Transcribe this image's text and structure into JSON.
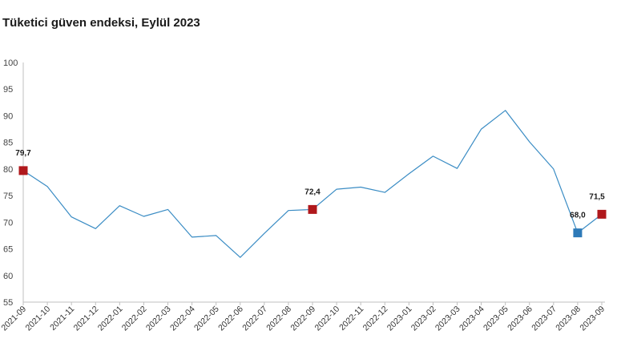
{
  "title": "Tüketici güven endeksi, Eylül 2023",
  "chart_data": {
    "type": "line",
    "title": "Tüketici güven endeksi, Eylül 2023",
    "xlabel": "",
    "ylabel": "",
    "ylim": [
      55,
      100
    ],
    "yticks": [
      "55",
      "60",
      "65",
      "70",
      "75",
      "80",
      "85",
      "90",
      "95",
      "100"
    ],
    "grid": false,
    "line_color": "#3a8cc4",
    "categories": [
      "2021-09",
      "2021-10",
      "2021-11",
      "2021-12",
      "2022-01",
      "2022-02",
      "2022-03",
      "2022-04",
      "2022-05",
      "2022-06",
      "2022-07",
      "2022-08",
      "2022-09",
      "2022-10",
      "2022-11",
      "2022-12",
      "2023-01",
      "2023-02",
      "2023-03",
      "2023-04",
      "2023-05",
      "2023-06",
      "2023-07",
      "2023-08",
      "2023-09"
    ],
    "series": [
      {
        "values": [
          79.7,
          76.7,
          71.0,
          68.8,
          73.1,
          71.1,
          72.4,
          67.2,
          67.5,
          63.4,
          67.9,
          72.2,
          72.4,
          76.2,
          76.6,
          75.6,
          79.1,
          82.4,
          80.1,
          87.5,
          91.0,
          85.1,
          80.0,
          68.0,
          71.5
        ]
      }
    ],
    "markers": [
      {
        "category": "2021-09",
        "value": 79.7,
        "label": "79,7",
        "color": "#b0181c"
      },
      {
        "category": "2022-09",
        "value": 72.4,
        "label": "72,4",
        "color": "#b0181c"
      },
      {
        "category": "2023-08",
        "value": 68.0,
        "label": "68,0",
        "color": "#2e7ab8"
      },
      {
        "category": "2023-09",
        "value": 71.5,
        "label": "71,5",
        "color": "#b0181c"
      }
    ]
  }
}
